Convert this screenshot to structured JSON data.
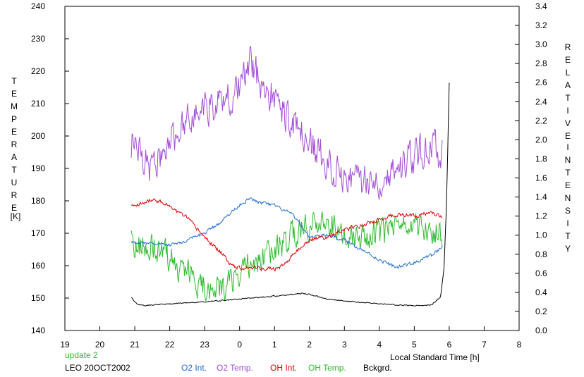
{
  "chart_data": {
    "type": "line",
    "left_axis": {
      "label_letters": [
        "T",
        "E",
        "M",
        "P",
        "E",
        "R",
        "A",
        "T",
        "U",
        "R",
        "E"
      ],
      "unit": "[K]",
      "range": [
        140,
        240
      ],
      "ticks": [
        "140",
        "150",
        "160",
        "170",
        "180",
        "190",
        "200",
        "210",
        "220",
        "230",
        "240"
      ]
    },
    "right_axis": {
      "label_letters_1": [
        "R",
        "E",
        "L",
        "A",
        "T",
        "I",
        "V",
        "E"
      ],
      "label_letters_2": [
        "I",
        "N",
        "T",
        "E",
        "N",
        "S",
        "I",
        "T",
        "Y"
      ],
      "range": [
        0.0,
        3.4
      ],
      "ticks": [
        "0.0",
        "0.2",
        "0.4",
        "0.6",
        "0.8",
        "1.0",
        "1.2",
        "1.4",
        "1.6",
        "1.8",
        "2.0",
        "2.2",
        "2.4",
        "2.6",
        "2.8",
        "3.0",
        "3.2",
        "3.4"
      ]
    },
    "x_axis": {
      "label": "Local Standard Time [h]",
      "range": [
        19,
        32
      ],
      "ticks": [
        "19",
        "20",
        "21",
        "22",
        "23",
        "0",
        "1",
        "2",
        "3",
        "4",
        "5",
        "6",
        "7",
        "8"
      ]
    },
    "notes": {
      "update": "update 2",
      "station": "LEO 20OCT2002"
    },
    "legend": [
      {
        "name": "O2 Int.",
        "color": "#1f6fd6"
      },
      {
        "name": "O2 Temp.",
        "color": "#a24ed6"
      },
      {
        "name": "OH Int.",
        "color": "#e00000"
      },
      {
        "name": "OH Temp.",
        "color": "#30bb30"
      },
      {
        "name": "Bckgrd.",
        "color": "#000000"
      }
    ],
    "series": [
      {
        "name": "O2 Temp.",
        "axis": "left",
        "color": "#a24ed6",
        "noise": 7.5,
        "x": [
          20.9,
          21.0,
          21.5,
          22.0,
          22.5,
          23.0,
          23.5,
          24.0,
          24.3,
          24.6,
          25.0,
          25.5,
          26.0,
          26.5,
          27.0,
          27.5,
          28.0,
          28.5,
          29.0,
          29.5,
          29.8
        ],
        "y": [
          198,
          196,
          190,
          198,
          205,
          209,
          210,
          215,
          222,
          217,
          211,
          204,
          197,
          192,
          188,
          186,
          187,
          190,
          194,
          197,
          194
        ]
      },
      {
        "name": "OH Temp.",
        "axis": "left",
        "color": "#30bb30",
        "noise": 6,
        "x": [
          20.9,
          21.0,
          21.5,
          22.0,
          22.5,
          23.0,
          23.5,
          24.0,
          24.5,
          25.0,
          25.5,
          26.0,
          26.5,
          27.0,
          27.5,
          28.0,
          28.5,
          29.0,
          29.5,
          29.8
        ],
        "y": [
          168,
          166,
          167,
          162,
          158,
          153,
          152,
          158,
          162,
          165,
          169,
          172,
          174,
          171,
          169,
          170,
          171,
          172,
          171,
          170
        ]
      },
      {
        "name": "O2 Int.",
        "axis": "right",
        "color": "#1f6fd6",
        "noise": 0.025,
        "x": [
          20.9,
          21.2,
          21.5,
          22.0,
          22.5,
          23.0,
          23.5,
          24.0,
          24.3,
          24.6,
          25.0,
          25.5,
          25.8,
          26.0,
          26.5,
          27.0,
          27.5,
          28.0,
          28.5,
          29.0,
          29.5,
          29.8
        ],
        "y": [
          0.92,
          0.93,
          0.91,
          0.9,
          0.94,
          1.02,
          1.15,
          1.32,
          1.38,
          1.34,
          1.31,
          1.22,
          1.08,
          0.98,
          1.0,
          0.95,
          0.85,
          0.74,
          0.66,
          0.71,
          0.79,
          0.87
        ]
      },
      {
        "name": "OH Int.",
        "axis": "right",
        "color": "#e00000",
        "noise": 0.03,
        "x": [
          20.9,
          21.2,
          21.5,
          21.8,
          22.0,
          22.5,
          23.0,
          23.5,
          23.8,
          24.0,
          24.5,
          25.0,
          25.3,
          25.6,
          26.0,
          26.5,
          27.0,
          27.5,
          28.0,
          28.5,
          29.0,
          29.5,
          29.8
        ],
        "y": [
          1.3,
          1.33,
          1.38,
          1.34,
          1.3,
          1.18,
          0.98,
          0.8,
          0.68,
          0.66,
          0.66,
          0.64,
          0.7,
          0.82,
          0.95,
          0.98,
          1.06,
          1.1,
          1.16,
          1.22,
          1.2,
          1.24,
          1.18
        ]
      },
      {
        "name": "Bckgrd.",
        "axis": "right",
        "color": "#000000",
        "noise": 0.008,
        "x": [
          20.9,
          21.05,
          21.3,
          22.0,
          23.0,
          24.0,
          25.0,
          25.8,
          26.0,
          26.5,
          27.0,
          28.0,
          29.0,
          29.5,
          29.75,
          29.85,
          29.92,
          29.97,
          30.0
        ],
        "y": [
          0.35,
          0.28,
          0.26,
          0.28,
          0.3,
          0.33,
          0.36,
          0.39,
          0.38,
          0.33,
          0.31,
          0.28,
          0.26,
          0.27,
          0.35,
          0.65,
          1.3,
          2.1,
          2.6
        ]
      }
    ]
  }
}
